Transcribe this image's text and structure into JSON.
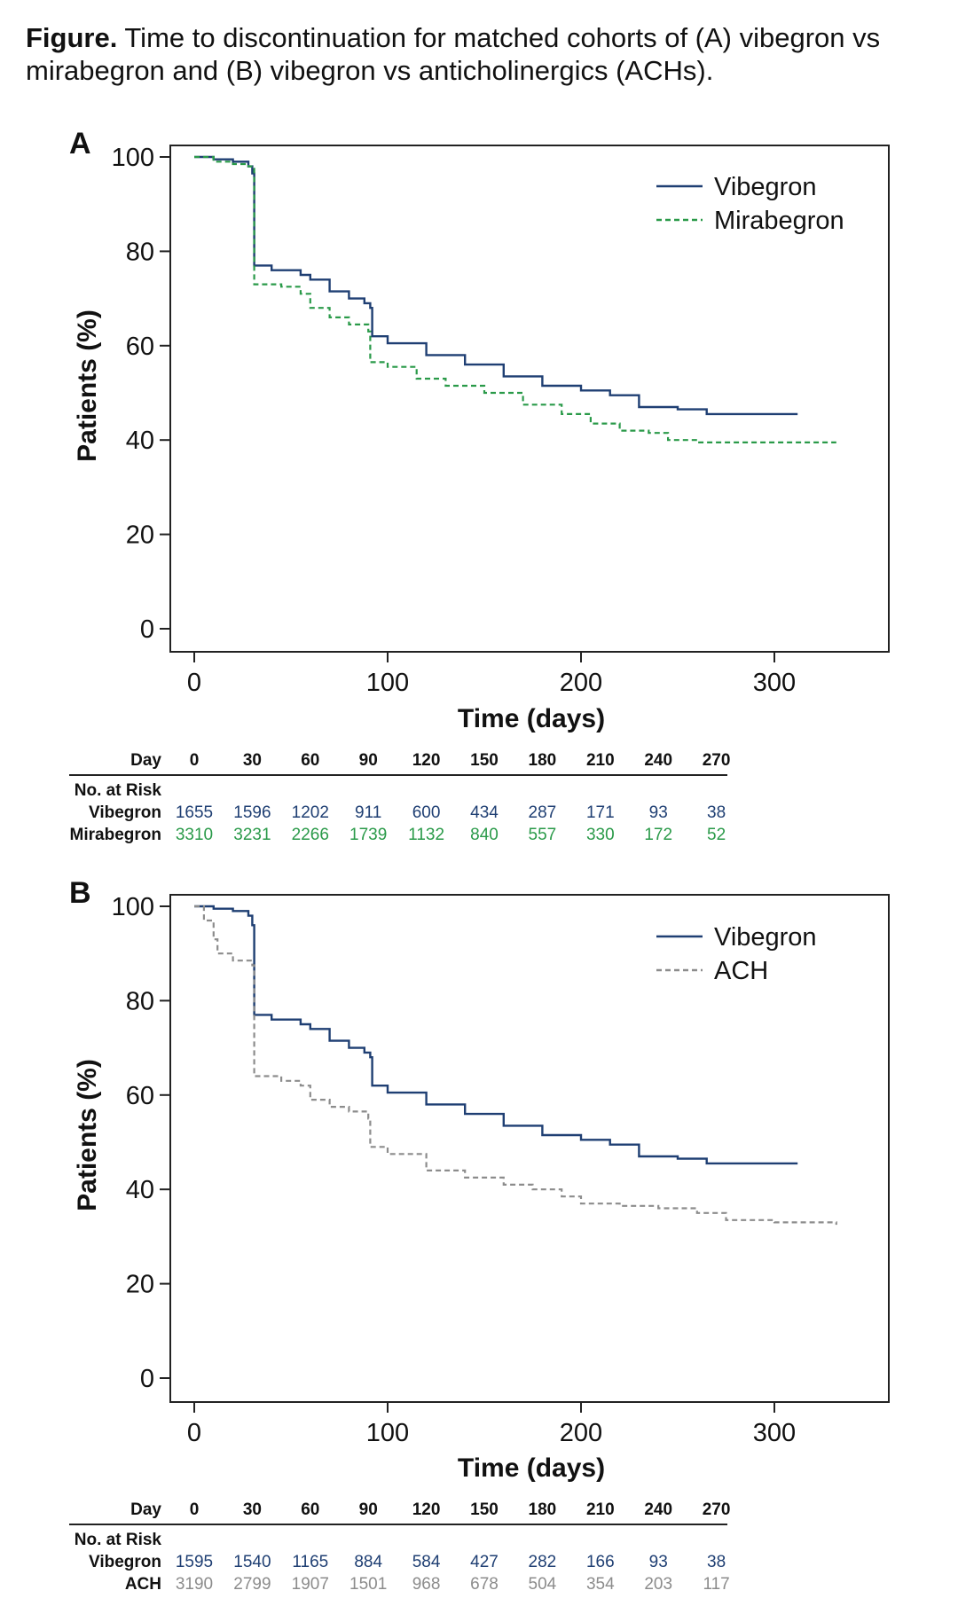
{
  "caption": {
    "bold": "Figure.",
    "text": " Time to discontinuation for matched cohorts of (A) vibegron vs mirabegron and (B) vibegron vs anticholinergics (ACHs)."
  },
  "colors": {
    "vibegron": "#1f3f73",
    "mirabegron": "#2a9a49",
    "ach": "#8c8c8c",
    "axis": "#222222"
  },
  "risk_table_labels": {
    "day": "Day",
    "no_at_risk": "No. at Risk"
  },
  "chart_data": [
    {
      "panel": "A",
      "type": "line",
      "xlabel": "Time (days)",
      "ylabel": "Patients (%)",
      "xlim": [
        -12,
        360
      ],
      "ylim": [
        -5,
        102
      ],
      "xticks": [
        0,
        100,
        200,
        300
      ],
      "yticks": [
        0,
        20,
        40,
        60,
        80,
        100
      ],
      "legend_position": "top-right",
      "series": [
        {
          "name": "Vibegron",
          "style": "solid",
          "color": "#1f3f73",
          "points": [
            [
              0,
              100
            ],
            [
              10,
              99.5
            ],
            [
              20,
              99
            ],
            [
              28,
              98
            ],
            [
              30,
              96.5
            ],
            [
              31,
              77
            ],
            [
              40,
              76
            ],
            [
              55,
              75
            ],
            [
              60,
              74
            ],
            [
              70,
              71.5
            ],
            [
              80,
              70
            ],
            [
              88,
              69
            ],
            [
              91,
              68
            ],
            [
              92,
              62
            ],
            [
              100,
              60.5
            ],
            [
              120,
              58
            ],
            [
              140,
              56
            ],
            [
              160,
              53.5
            ],
            [
              180,
              51.5
            ],
            [
              200,
              50.5
            ],
            [
              215,
              49.5
            ],
            [
              230,
              47
            ],
            [
              250,
              46.5
            ],
            [
              265,
              45.5
            ],
            [
              312,
              45.5
            ]
          ]
        },
        {
          "name": "Mirabegron",
          "style": "dashed",
          "color": "#2a9a49",
          "points": [
            [
              0,
              100
            ],
            [
              10,
              99
            ],
            [
              20,
              98.5
            ],
            [
              28,
              98
            ],
            [
              30,
              97.5
            ],
            [
              31,
              73
            ],
            [
              45,
              72.5
            ],
            [
              55,
              71
            ],
            [
              60,
              68
            ],
            [
              70,
              66
            ],
            [
              80,
              64.5
            ],
            [
              90,
              63
            ],
            [
              91,
              56.5
            ],
            [
              100,
              55.5
            ],
            [
              115,
              53
            ],
            [
              130,
              51.5
            ],
            [
              150,
              50
            ],
            [
              170,
              47.5
            ],
            [
              190,
              45.5
            ],
            [
              205,
              43.5
            ],
            [
              220,
              42
            ],
            [
              235,
              41.5
            ],
            [
              245,
              40
            ],
            [
              260,
              39.5
            ],
            [
              332,
              39.5
            ]
          ]
        }
      ],
      "risk_table": {
        "days": [
          0,
          30,
          60,
          90,
          120,
          150,
          180,
          210,
          240,
          270
        ],
        "rows": [
          {
            "label": "Vibegron",
            "color": "#1f3f73",
            "values": [
              1655,
              1596,
              1202,
              911,
              600,
              434,
              287,
              171,
              93,
              38
            ]
          },
          {
            "label": "Mirabegron",
            "color": "#2a9a49",
            "values": [
              3310,
              3231,
              2266,
              1739,
              1132,
              840,
              557,
              330,
              172,
              52
            ]
          }
        ]
      }
    },
    {
      "panel": "B",
      "type": "line",
      "xlabel": "Time (days)",
      "ylabel": "Patients (%)",
      "xlim": [
        -12,
        360
      ],
      "ylim": [
        -5,
        102
      ],
      "xticks": [
        0,
        100,
        200,
        300
      ],
      "yticks": [
        0,
        20,
        40,
        60,
        80,
        100
      ],
      "legend_position": "top-right",
      "series": [
        {
          "name": "Vibegron",
          "style": "solid",
          "color": "#1f3f73",
          "points": [
            [
              0,
              100
            ],
            [
              10,
              99.5
            ],
            [
              20,
              99
            ],
            [
              28,
              98
            ],
            [
              30,
              96
            ],
            [
              31,
              77
            ],
            [
              40,
              76
            ],
            [
              55,
              75
            ],
            [
              60,
              74
            ],
            [
              70,
              71.5
            ],
            [
              80,
              70
            ],
            [
              88,
              69
            ],
            [
              91,
              68
            ],
            [
              92,
              62
            ],
            [
              100,
              60.5
            ],
            [
              120,
              58
            ],
            [
              140,
              56
            ],
            [
              160,
              53.5
            ],
            [
              180,
              51.5
            ],
            [
              200,
              50.5
            ],
            [
              215,
              49.5
            ],
            [
              230,
              47
            ],
            [
              250,
              46.5
            ],
            [
              265,
              45.5
            ],
            [
              312,
              45.5
            ]
          ]
        },
        {
          "name": "ACH",
          "style": "dashed",
          "color": "#8c8c8c",
          "points": [
            [
              0,
              100
            ],
            [
              5,
              97
            ],
            [
              10,
              93
            ],
            [
              12,
              90
            ],
            [
              20,
              88.5
            ],
            [
              30,
              87.5
            ],
            [
              31,
              64
            ],
            [
              45,
              63
            ],
            [
              55,
              62
            ],
            [
              60,
              59
            ],
            [
              70,
              57.5
            ],
            [
              80,
              56.5
            ],
            [
              90,
              55
            ],
            [
              91,
              49
            ],
            [
              100,
              47.5
            ],
            [
              120,
              44
            ],
            [
              140,
              42.5
            ],
            [
              160,
              41
            ],
            [
              175,
              40
            ],
            [
              190,
              38.5
            ],
            [
              200,
              37
            ],
            [
              220,
              36.5
            ],
            [
              240,
              36
            ],
            [
              260,
              35
            ],
            [
              275,
              33.5
            ],
            [
              300,
              33
            ],
            [
              332,
              32.5
            ]
          ]
        }
      ],
      "risk_table": {
        "days": [
          0,
          30,
          60,
          90,
          120,
          150,
          180,
          210,
          240,
          270
        ],
        "rows": [
          {
            "label": "Vibegron",
            "color": "#1f3f73",
            "values": [
              1595,
              1540,
              1165,
              884,
              584,
              427,
              282,
              166,
              93,
              38
            ]
          },
          {
            "label": "ACH",
            "color": "#8c8c8c",
            "values": [
              3190,
              2799,
              1907,
              1501,
              968,
              678,
              504,
              354,
              203,
              117
            ]
          }
        ]
      }
    }
  ]
}
